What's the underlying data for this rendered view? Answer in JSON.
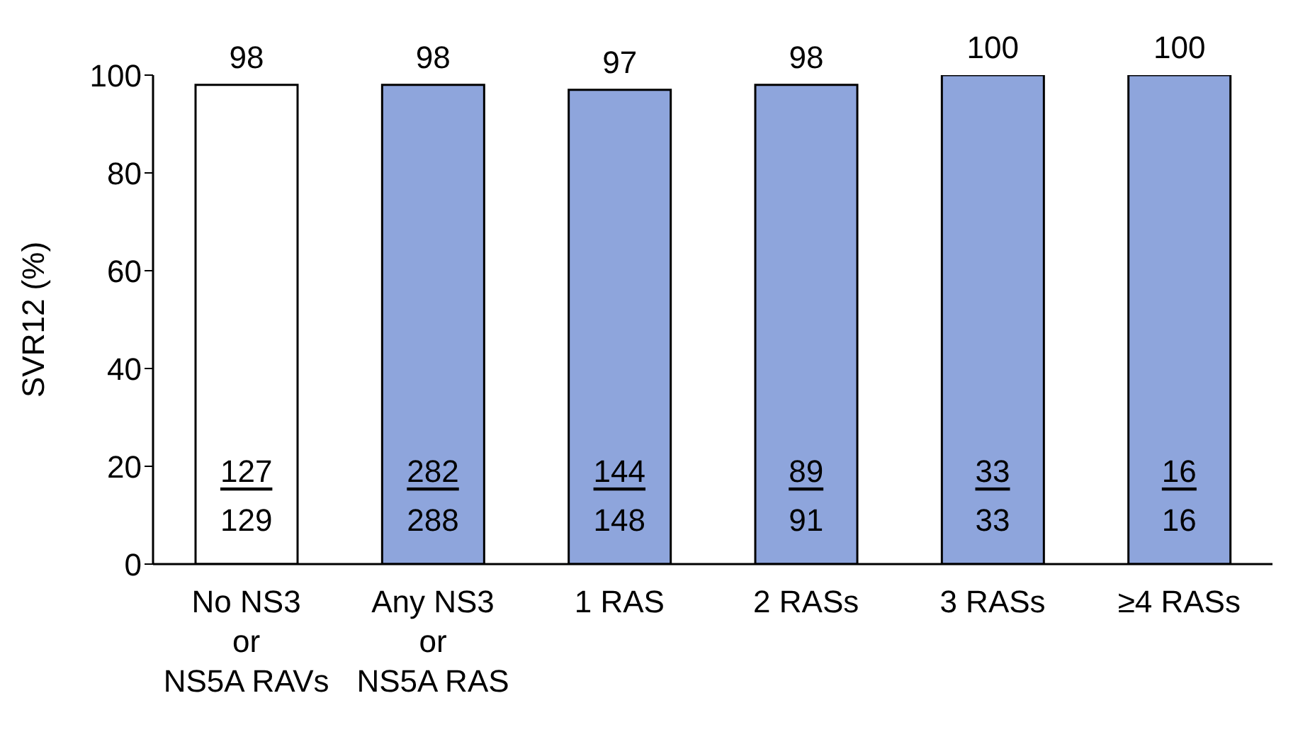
{
  "chart_data": {
    "type": "bar",
    "ylabel": "SVR12 (%)",
    "categories": [
      "No NS3\nor\nNS5A RAVs",
      "Any NS3\nor\nNS5A RAS",
      "1 RAS",
      "2 RASs",
      "3 RASs",
      "≥4 RASs"
    ],
    "values": [
      98,
      98,
      97,
      98,
      100,
      100
    ],
    "colors": [
      "#ffffff",
      "#8ea5dc",
      "#8ea5dc",
      "#8ea5dc",
      "#8ea5dc",
      "#8ea5dc"
    ],
    "data_labels": true,
    "ylim": [
      0,
      100
    ],
    "yticks": [
      0,
      20,
      40,
      60,
      80,
      100
    ],
    "grid": false,
    "legend": false,
    "annotations": [
      "127",
      "129",
      "282",
      "288",
      "144",
      "148",
      "89",
      "91",
      "33",
      "33",
      "16",
      "16"
    ]
  }
}
